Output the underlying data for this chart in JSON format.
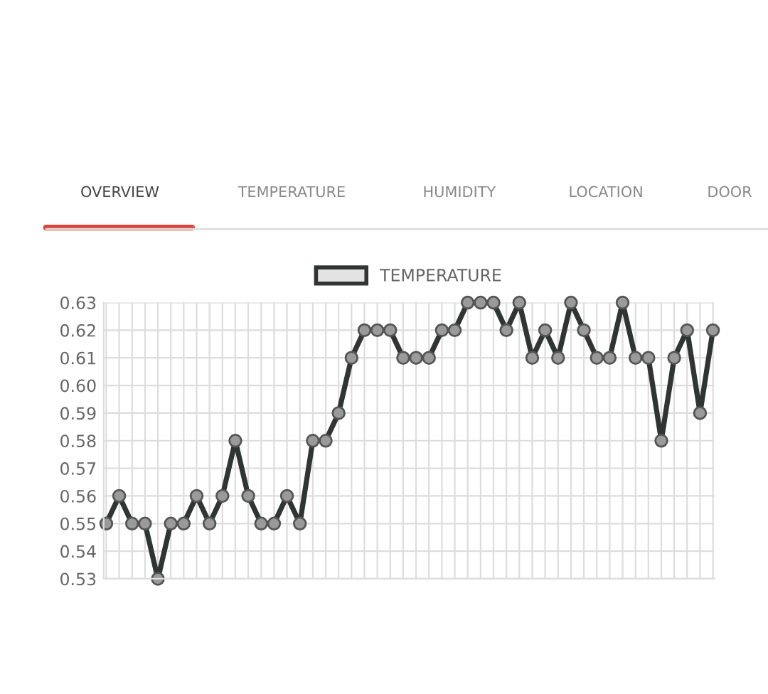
{
  "chart_data": {
    "type": "line",
    "annotations": [
      "OVERVIEW",
      "TEMPERATURE",
      "HUMIDITY",
      "LOCATION",
      "DOOR"
    ],
    "categories": [
      null,
      null,
      null,
      null,
      null,
      null,
      null,
      null,
      null,
      null,
      null,
      null,
      null,
      null,
      null,
      null,
      null,
      null,
      null,
      null,
      null,
      null,
      null,
      null,
      null,
      null,
      null,
      null,
      null,
      null,
      null,
      null,
      null,
      null,
      null,
      null,
      null,
      null,
      null,
      null,
      null,
      null,
      null,
      null,
      null,
      null,
      null,
      null
    ],
    "series": [
      {
        "name": "TEMPERATURE",
        "color": "#2f3533",
        "values": [
          0.55,
          0.56,
          0.55,
          0.55,
          0.53,
          0.55,
          0.55,
          0.56,
          0.55,
          0.56,
          0.58,
          0.56,
          0.55,
          0.55,
          0.56,
          0.55,
          0.58,
          0.58,
          0.59,
          0.61,
          0.62,
          0.62,
          0.62,
          0.61,
          0.61,
          0.61,
          0.62,
          0.62,
          0.63,
          0.63,
          0.63,
          0.62,
          0.63,
          0.61,
          0.62,
          0.61,
          0.63,
          0.62,
          0.61,
          0.61,
          0.63,
          0.61,
          0.61,
          0.58,
          0.61,
          0.62,
          0.59,
          0.62
        ]
      }
    ],
    "ylim": [
      0.53,
      0.63
    ],
    "yticks": [
      {
        "value": 0.53,
        "label": "0.53"
      },
      {
        "value": 0.54,
        "label": "0.54"
      },
      {
        "value": 0.55,
        "label": "0.55"
      },
      {
        "value": 0.56,
        "label": "0.56"
      },
      {
        "value": 0.57,
        "label": "0.57"
      },
      {
        "value": 0.58,
        "label": "0.58"
      },
      {
        "value": 0.59,
        "label": "0.59"
      },
      {
        "value": 0.6,
        "label": "0.60"
      },
      {
        "value": 0.61,
        "label": "0.61"
      },
      {
        "value": 0.62,
        "label": "0.62"
      },
      {
        "value": 0.63,
        "label": "0.63"
      }
    ],
    "tick_labels": "y",
    "grid": true,
    "legend": "top",
    "marker": "circle",
    "line_style": "solid"
  }
}
